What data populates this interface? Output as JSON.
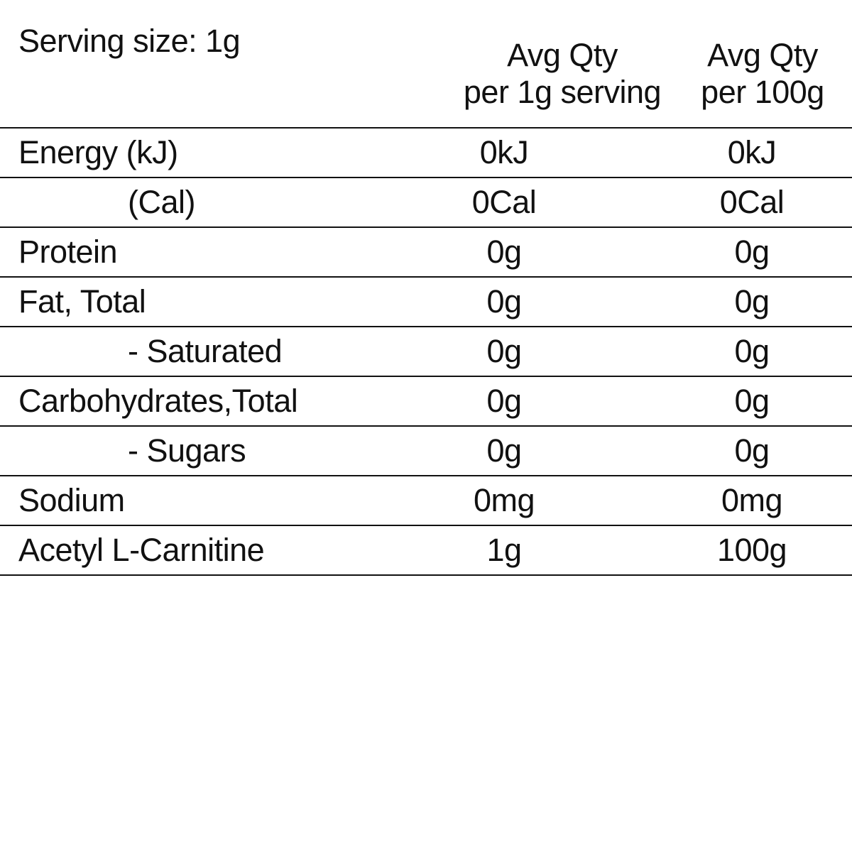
{
  "serving_size": "Serving size: 1g",
  "columns": [
    {
      "line1": "Avg Qty",
      "line2": "per 1g serving"
    },
    {
      "line1": "Avg Qty",
      "line2": "per 100g"
    }
  ],
  "rows": [
    {
      "label": "Energy (kJ)",
      "indent": false,
      "per_serving": "0kJ",
      "per_100g": "0kJ"
    },
    {
      "label": "(Cal)",
      "indent": true,
      "per_serving": "0Cal",
      "per_100g": "0Cal"
    },
    {
      "label": "Protein",
      "indent": false,
      "per_serving": "0g",
      "per_100g": "0g"
    },
    {
      "label": "Fat, Total",
      "indent": false,
      "per_serving": "0g",
      "per_100g": "0g"
    },
    {
      "label": "- Saturated",
      "indent": true,
      "per_serving": "0g",
      "per_100g": "0g"
    },
    {
      "label": "Carbohydrates,Total",
      "indent": false,
      "per_serving": "0g",
      "per_100g": "0g"
    },
    {
      "label": "- Sugars",
      "indent": true,
      "per_serving": "0g",
      "per_100g": "0g"
    },
    {
      "label": "Sodium",
      "indent": false,
      "per_serving": "0mg",
      "per_100g": "0mg"
    },
    {
      "label": "Acetyl L-Carnitine",
      "indent": false,
      "per_serving": "1g",
      "per_100g": "100g"
    }
  ]
}
